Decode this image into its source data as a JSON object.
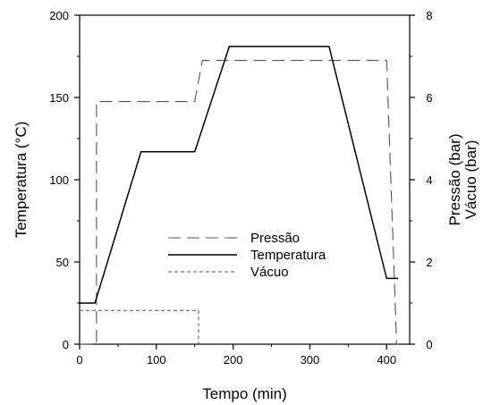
{
  "chart_data": {
    "type": "line",
    "xlabel": "Tempo (min)",
    "ylabel_left": "Temperatura (°C)",
    "ylabel_right_1": "Pressão (bar)",
    "ylabel_right_2": "Vácuo (bar)",
    "xlim": [
      0,
      430
    ],
    "ylim_left": [
      0,
      200
    ],
    "ylim_right": [
      0,
      8
    ],
    "x_ticks": [
      0,
      100,
      200,
      300,
      400
    ],
    "y_left_ticks": [
      0,
      50,
      100,
      150,
      200
    ],
    "y_right_ticks": [
      0,
      2,
      4,
      6,
      8
    ],
    "grid": false,
    "legend_position": "center",
    "series": [
      {
        "name": "Pressão",
        "axis": "right",
        "style": "long-dash",
        "color": "#555555",
        "x": [
          0,
          22,
          22,
          150,
          160,
          400,
          413,
          415
        ],
        "y": [
          0,
          0,
          5.9,
          5.9,
          6.9,
          6.9,
          0,
          0
        ]
      },
      {
        "name": "Temperatura",
        "axis": "left",
        "style": "solid",
        "color": "#000000",
        "x": [
          0,
          20,
          80,
          150,
          195,
          325,
          400,
          415
        ],
        "y": [
          25,
          25,
          117,
          117,
          181,
          181,
          40,
          40
        ]
      },
      {
        "name": "Vácuo",
        "axis": "right",
        "style": "short-dash",
        "color": "#555555",
        "x": [
          0,
          155,
          155
        ],
        "y": [
          0.82,
          0.82,
          0
        ]
      }
    ]
  }
}
